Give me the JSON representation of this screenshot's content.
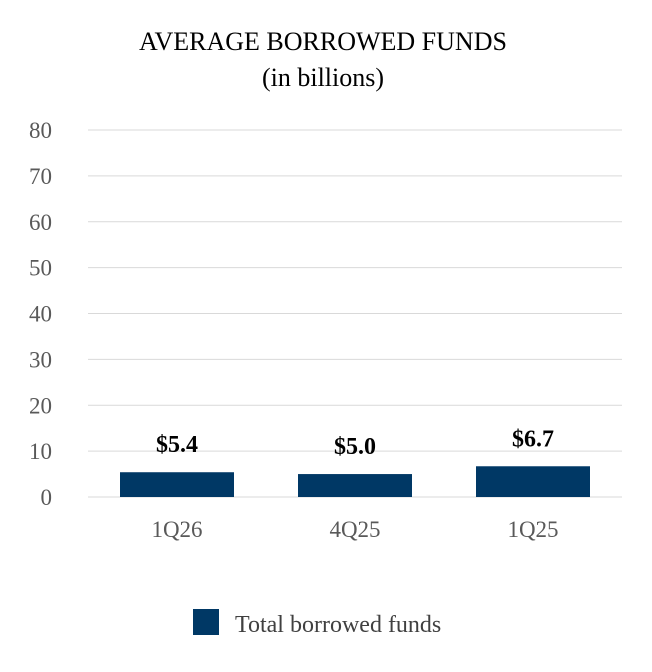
{
  "chart_data": {
    "type": "bar",
    "title": "AVERAGE BORROWED FUNDS",
    "subtitle": "(in billions)",
    "categories": [
      "1Q26",
      "4Q25",
      "1Q25"
    ],
    "series": [
      {
        "name": "Total borrowed funds",
        "values": [
          5.4,
          5.0,
          6.7
        ],
        "labels": [
          "$5.4",
          "$5.0",
          "$6.7"
        ],
        "color": "#003865"
      }
    ],
    "ylim": [
      0,
      80
    ],
    "yticks": [
      "0",
      "10",
      "20",
      "30",
      "40",
      "50",
      "60",
      "70",
      "80"
    ],
    "grid": true,
    "legend_position": "bottom"
  }
}
